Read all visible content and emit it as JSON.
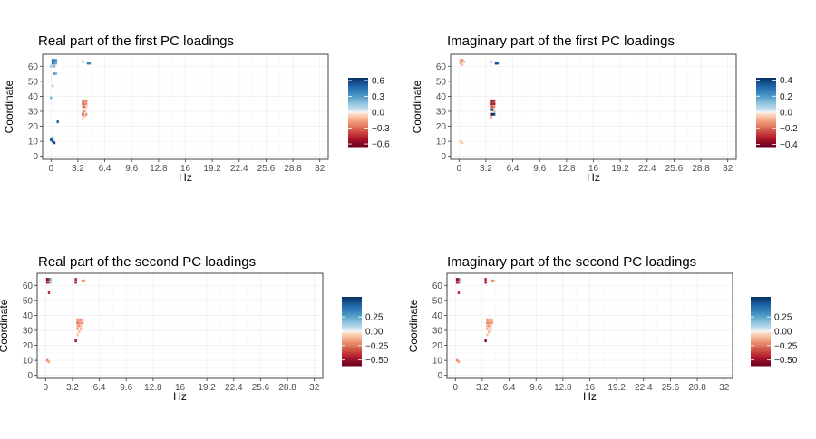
{
  "colors": {
    "positive": "#053061",
    "negative": "#67001f",
    "neutral": "#f7f7f7",
    "gridline": "#ebebeb",
    "frame": "#333333"
  },
  "chart_data": [
    {
      "type": "heatmap",
      "title": "Real part of the first PC loadings",
      "xlabel": "Hz",
      "ylabel": "Coordinate",
      "xlim": [
        -1,
        33
      ],
      "ylim": [
        -2,
        68
      ],
      "x_ticks": [
        "0",
        "3.2",
        "6.4",
        "9.6",
        "12.8",
        "16",
        "19.2",
        "22.4",
        "25.6",
        "28.8",
        "32"
      ],
      "y_ticks": [
        "0",
        "10",
        "20",
        "30",
        "40",
        "50",
        "60"
      ],
      "grid": true,
      "legend": {
        "position": "right",
        "ticks": [
          "0.6",
          "0.3",
          "0.0",
          "−0.3",
          "−0.6"
        ],
        "limit": 0.65
      },
      "cells": [
        {
          "x": 0.2,
          "y": 64,
          "v": 0.35
        },
        {
          "x": 0.4,
          "y": 64,
          "v": 0.4
        },
        {
          "x": 0.6,
          "y": 64,
          "v": 0.3
        },
        {
          "x": 0.2,
          "y": 62,
          "v": 0.45
        },
        {
          "x": 0.4,
          "y": 62,
          "v": 0.3
        },
        {
          "x": 0.6,
          "y": 62,
          "v": 0.25
        },
        {
          "x": 0.0,
          "y": 60,
          "v": 0.15
        },
        {
          "x": 0.4,
          "y": 60,
          "v": 0.2
        },
        {
          "x": 0.4,
          "y": 55,
          "v": 0.3
        },
        {
          "x": 0.6,
          "y": 55,
          "v": 0.2
        },
        {
          "x": 0.2,
          "y": 47,
          "v": 0.1
        },
        {
          "x": 0.0,
          "y": 39,
          "v": 0.2
        },
        {
          "x": 0.8,
          "y": 23,
          "v": 0.5
        },
        {
          "x": 0.0,
          "y": 11,
          "v": 0.55
        },
        {
          "x": 0.2,
          "y": 10,
          "v": 0.6
        },
        {
          "x": 0.4,
          "y": 9,
          "v": 0.55
        },
        {
          "x": 0.2,
          "y": 12,
          "v": 0.35
        },
        {
          "x": 3.8,
          "y": 63,
          "v": 0.15
        },
        {
          "x": 4.4,
          "y": 62,
          "v": 0.4
        },
        {
          "x": 4.6,
          "y": 62,
          "v": 0.35
        },
        {
          "x": 3.8,
          "y": 37,
          "v": -0.3
        },
        {
          "x": 4.0,
          "y": 37,
          "v": -0.2
        },
        {
          "x": 4.2,
          "y": 37,
          "v": -0.25
        },
        {
          "x": 3.8,
          "y": 35,
          "v": -0.35
        },
        {
          "x": 4.0,
          "y": 35,
          "v": -0.25
        },
        {
          "x": 4.2,
          "y": 35,
          "v": -0.2
        },
        {
          "x": 3.8,
          "y": 33,
          "v": -0.15
        },
        {
          "x": 4.0,
          "y": 33,
          "v": -0.3
        },
        {
          "x": 4.2,
          "y": 33,
          "v": -0.1
        },
        {
          "x": 3.8,
          "y": 30,
          "v": -0.1
        },
        {
          "x": 4.0,
          "y": 30,
          "v": -0.2
        },
        {
          "x": 3.8,
          "y": 28,
          "v": -0.4
        },
        {
          "x": 4.0,
          "y": 27,
          "v": -0.15
        },
        {
          "x": 4.2,
          "y": 28,
          "v": -0.2
        },
        {
          "x": 3.8,
          "y": 25,
          "v": -0.1
        }
      ]
    },
    {
      "type": "heatmap",
      "title": "Imaginary part of the first PC loadings",
      "xlabel": "Hz",
      "ylabel": "Coordinate",
      "xlim": [
        -1,
        33
      ],
      "ylim": [
        -2,
        68
      ],
      "x_ticks": [
        "0",
        "3.2",
        "6.4",
        "9.6",
        "12.8",
        "16",
        "19.2",
        "22.4",
        "25.6",
        "28.8",
        "32"
      ],
      "y_ticks": [
        "0",
        "10",
        "20",
        "30",
        "40",
        "50",
        "60"
      ],
      "grid": true,
      "legend": {
        "position": "right",
        "ticks": [
          "0.4",
          "0.2",
          "0.0",
          "−0.2",
          "−0.4"
        ],
        "limit": 0.45
      },
      "cells": [
        {
          "x": 0.2,
          "y": 64,
          "v": -0.1
        },
        {
          "x": 0.4,
          "y": 64,
          "v": -0.15
        },
        {
          "x": 0.6,
          "y": 63,
          "v": -0.08
        },
        {
          "x": 0.2,
          "y": 62,
          "v": -0.12
        },
        {
          "x": 0.4,
          "y": 61,
          "v": -0.06
        },
        {
          "x": 0.2,
          "y": 10,
          "v": -0.06
        },
        {
          "x": 0.4,
          "y": 9,
          "v": -0.05
        },
        {
          "x": 3.8,
          "y": 63,
          "v": 0.1
        },
        {
          "x": 4.4,
          "y": 62,
          "v": 0.4
        },
        {
          "x": 4.6,
          "y": 62,
          "v": 0.35
        },
        {
          "x": 3.8,
          "y": 37,
          "v": -0.4
        },
        {
          "x": 4.0,
          "y": 37,
          "v": -0.35
        },
        {
          "x": 4.2,
          "y": 37,
          "v": -0.3
        },
        {
          "x": 3.8,
          "y": 35,
          "v": -0.45
        },
        {
          "x": 4.0,
          "y": 35,
          "v": -0.3
        },
        {
          "x": 4.2,
          "y": 35,
          "v": -0.35
        },
        {
          "x": 3.8,
          "y": 33,
          "v": -0.2
        },
        {
          "x": 4.0,
          "y": 33,
          "v": -0.25
        },
        {
          "x": 4.2,
          "y": 33,
          "v": -0.15
        },
        {
          "x": 3.8,
          "y": 31,
          "v": 0.3
        },
        {
          "x": 4.0,
          "y": 31,
          "v": 0.35
        },
        {
          "x": 4.2,
          "y": 30,
          "v": -0.1
        },
        {
          "x": 3.8,
          "y": 28,
          "v": -0.3
        },
        {
          "x": 4.0,
          "y": 28,
          "v": 0.45
        },
        {
          "x": 4.2,
          "y": 28,
          "v": 0.4
        },
        {
          "x": 3.8,
          "y": 26,
          "v": -0.15
        }
      ]
    },
    {
      "type": "heatmap",
      "title": "Real part of the second PC loadings",
      "xlabel": "Hz",
      "ylabel": "Coordinate",
      "xlim": [
        -1,
        33
      ],
      "ylim": [
        -2,
        68
      ],
      "x_ticks": [
        "0",
        "3.2",
        "6.4",
        "9.6",
        "12.8",
        "16",
        "19.2",
        "22.4",
        "25.6",
        "28.8",
        "32"
      ],
      "y_ticks": [
        "0",
        "10",
        "20",
        "30",
        "40",
        "50",
        "60"
      ],
      "grid": true,
      "legend": {
        "position": "right",
        "ticks": [
          "0.25",
          "0.00",
          "−0.25",
          "−0.50"
        ],
        "limit": 0.6
      },
      "cells": [
        {
          "x": 0.2,
          "y": 64,
          "v": -0.55
        },
        {
          "x": 0.4,
          "y": 64,
          "v": -0.45
        },
        {
          "x": 0.6,
          "y": 64,
          "v": 0.2
        },
        {
          "x": 0.2,
          "y": 62,
          "v": -0.5
        },
        {
          "x": 0.4,
          "y": 62,
          "v": -0.4
        },
        {
          "x": 0.6,
          "y": 62,
          "v": 0.15
        },
        {
          "x": 0.4,
          "y": 55,
          "v": -0.4
        },
        {
          "x": 0.2,
          "y": 10,
          "v": -0.2
        },
        {
          "x": 0.4,
          "y": 9,
          "v": -0.15
        },
        {
          "x": 3.6,
          "y": 64,
          "v": -0.45
        },
        {
          "x": 3.6,
          "y": 62,
          "v": -0.5
        },
        {
          "x": 4.4,
          "y": 63,
          "v": -0.2
        },
        {
          "x": 4.6,
          "y": 63,
          "v": -0.15
        },
        {
          "x": 3.8,
          "y": 37,
          "v": -0.2
        },
        {
          "x": 4.0,
          "y": 37,
          "v": -0.15
        },
        {
          "x": 4.2,
          "y": 37,
          "v": -0.2
        },
        {
          "x": 4.4,
          "y": 37,
          "v": -0.1
        },
        {
          "x": 3.8,
          "y": 35,
          "v": -0.25
        },
        {
          "x": 4.0,
          "y": 35,
          "v": -0.2
        },
        {
          "x": 4.2,
          "y": 35,
          "v": -0.15
        },
        {
          "x": 4.4,
          "y": 35,
          "v": -0.18
        },
        {
          "x": 3.8,
          "y": 33,
          "v": -0.12
        },
        {
          "x": 4.0,
          "y": 33,
          "v": -0.2
        },
        {
          "x": 4.2,
          "y": 33,
          "v": -0.1
        },
        {
          "x": 3.8,
          "y": 31,
          "v": -0.15
        },
        {
          "x": 4.2,
          "y": 31,
          "v": -0.12
        },
        {
          "x": 4.0,
          "y": 29,
          "v": -0.1
        },
        {
          "x": 3.8,
          "y": 27,
          "v": -0.08
        },
        {
          "x": 3.6,
          "y": 23,
          "v": -0.5
        }
      ]
    },
    {
      "type": "heatmap",
      "title": "Imaginary part of the second PC loadings",
      "xlabel": "Hz",
      "ylabel": "Coordinate",
      "xlim": [
        -1,
        33
      ],
      "ylim": [
        -2,
        68
      ],
      "x_ticks": [
        "0",
        "3.2",
        "6.4",
        "9.6",
        "12.8",
        "16",
        "19.2",
        "22.4",
        "25.6",
        "28.8",
        "32"
      ],
      "y_ticks": [
        "0",
        "10",
        "20",
        "30",
        "40",
        "50",
        "60"
      ],
      "grid": true,
      "legend": {
        "position": "right",
        "ticks": [
          "0.25",
          "0.00",
          "−0.25",
          "−0.50"
        ],
        "limit": 0.6
      },
      "cells": [
        {
          "x": 0.2,
          "y": 64,
          "v": -0.55
        },
        {
          "x": 0.4,
          "y": 64,
          "v": -0.45
        },
        {
          "x": 0.6,
          "y": 64,
          "v": 0.15
        },
        {
          "x": 0.2,
          "y": 62,
          "v": -0.5
        },
        {
          "x": 0.4,
          "y": 62,
          "v": -0.4
        },
        {
          "x": 0.6,
          "y": 62,
          "v": 0.12
        },
        {
          "x": 0.4,
          "y": 55,
          "v": -0.4
        },
        {
          "x": 0.2,
          "y": 10,
          "v": -0.2
        },
        {
          "x": 0.4,
          "y": 9,
          "v": -0.15
        },
        {
          "x": 3.6,
          "y": 64,
          "v": -0.45
        },
        {
          "x": 3.6,
          "y": 62,
          "v": -0.5
        },
        {
          "x": 4.4,
          "y": 63,
          "v": -0.25
        },
        {
          "x": 4.6,
          "y": 63,
          "v": -0.12
        },
        {
          "x": 3.8,
          "y": 37,
          "v": -0.2
        },
        {
          "x": 4.0,
          "y": 37,
          "v": -0.12
        },
        {
          "x": 4.2,
          "y": 37,
          "v": -0.18
        },
        {
          "x": 4.4,
          "y": 37,
          "v": -0.1
        },
        {
          "x": 3.8,
          "y": 35,
          "v": -0.22
        },
        {
          "x": 4.0,
          "y": 35,
          "v": -0.2
        },
        {
          "x": 4.2,
          "y": 35,
          "v": -0.15
        },
        {
          "x": 4.4,
          "y": 35,
          "v": -0.16
        },
        {
          "x": 3.8,
          "y": 33,
          "v": -0.12
        },
        {
          "x": 4.0,
          "y": 33,
          "v": -0.18
        },
        {
          "x": 4.2,
          "y": 33,
          "v": -0.1
        },
        {
          "x": 3.8,
          "y": 31,
          "v": -0.14
        },
        {
          "x": 4.2,
          "y": 31,
          "v": -0.12
        },
        {
          "x": 4.0,
          "y": 29,
          "v": -0.1
        },
        {
          "x": 3.8,
          "y": 27,
          "v": -0.08
        },
        {
          "x": 3.6,
          "y": 23,
          "v": -0.55
        }
      ]
    }
  ]
}
